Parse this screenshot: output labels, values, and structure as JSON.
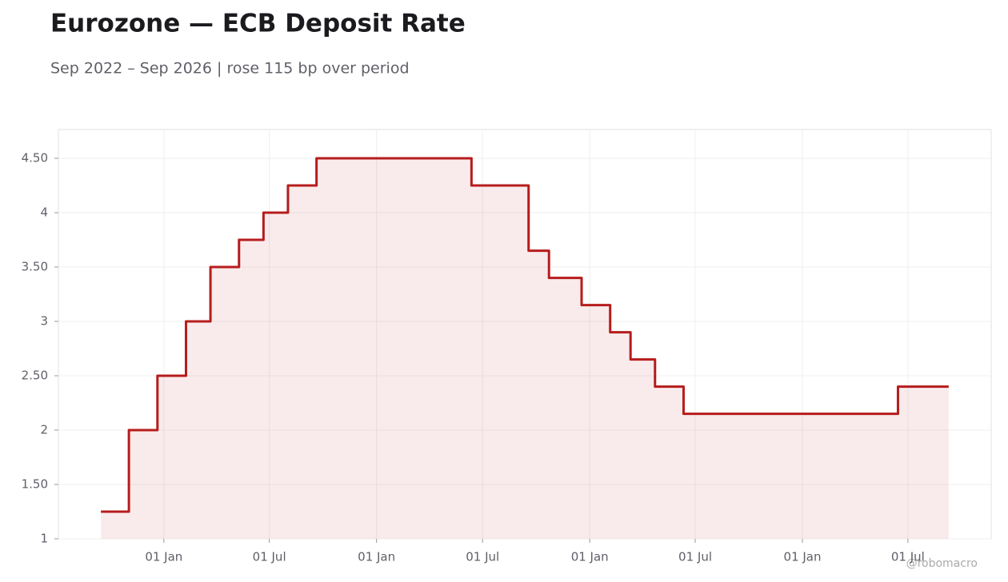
{
  "chart_data": {
    "type": "step-line",
    "title": "Eurozone — ECB Deposit Rate",
    "subtitle": "Sep 2022 – Sep 2026 | rose 115 bp over period",
    "watermark": "@robomacro",
    "x": [
      "2022-09-15",
      "2022-11-02",
      "2022-12-21",
      "2023-02-08",
      "2023-03-22",
      "2023-05-10",
      "2023-06-21",
      "2023-08-02",
      "2023-09-20",
      "2024-06-12",
      "2024-09-18",
      "2024-10-23",
      "2024-12-18",
      "2025-02-05",
      "2025-03-12",
      "2025-04-23",
      "2025-06-11",
      "2026-06-14",
      "2026-09-09"
    ],
    "series": [
      {
        "name": "ECB Deposit Rate",
        "color": "#b71c1c",
        "fill": "rgba(183,28,28,0.09)",
        "values": [
          1.25,
          2,
          2.5,
          3,
          3.5,
          3.75,
          4,
          4.25,
          4.5,
          4.25,
          3.65,
          3.4,
          3.15,
          2.9,
          2.65,
          2.4,
          2.15,
          2.4,
          2.4
        ]
      }
    ],
    "xlim": [
      "2022-07-04",
      "2026-11-21"
    ],
    "xticks": [
      {
        "value": "2023-01-01",
        "label": "01 Jan"
      },
      {
        "value": "2023-07-01",
        "label": "01 Jul"
      },
      {
        "value": "2024-01-01",
        "label": "01 Jan"
      },
      {
        "value": "2024-07-01",
        "label": "01 Jul"
      },
      {
        "value": "2025-01-01",
        "label": "01 Jan"
      },
      {
        "value": "2025-07-01",
        "label": "01 Jul"
      },
      {
        "value": "2026-01-01",
        "label": "01 Jan"
      },
      {
        "value": "2026-07-01",
        "label": "01 Jul"
      }
    ],
    "ylim": [
      1,
      4.765
    ],
    "yticks": [
      1,
      {
        "value": 1.5,
        "label": "1.50"
      },
      2,
      {
        "value": 2.5,
        "label": "2.50"
      },
      3,
      {
        "value": 3.5,
        "label": "3.50"
      },
      4,
      {
        "value": 4.5,
        "label": "4.50"
      }
    ],
    "grid": true
  }
}
